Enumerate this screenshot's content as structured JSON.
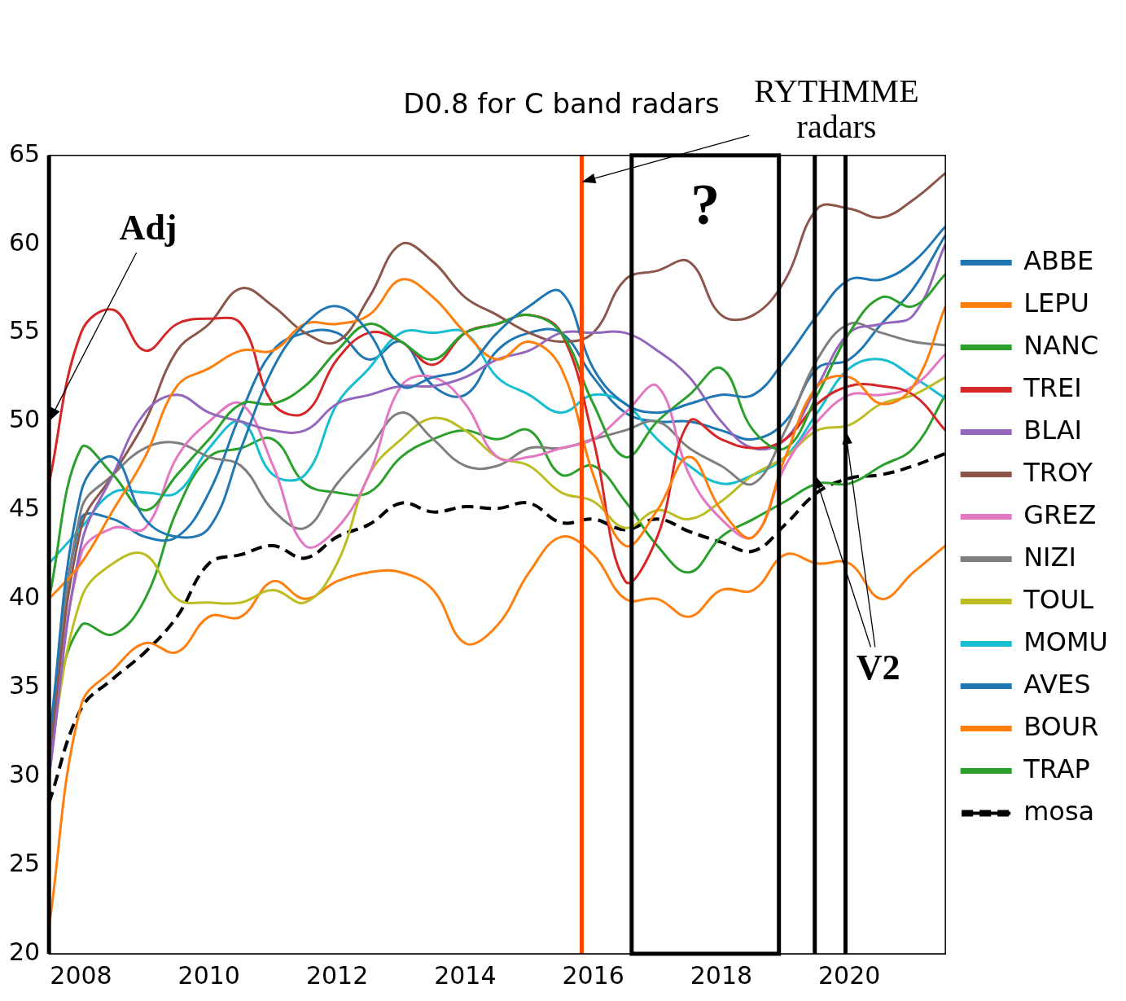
{
  "chart_data": {
    "type": "line",
    "title": "D0.8 for C band radars",
    "x": [
      2007.5,
      2008,
      2008.5,
      2009,
      2009.5,
      2010,
      2010.5,
      2011,
      2011.5,
      2012,
      2012.5,
      2013,
      2013.5,
      2014,
      2014.5,
      2015,
      2015.5,
      2016,
      2016.5,
      2017,
      2017.5,
      2018,
      2018.5,
      2019,
      2019.5,
      2020,
      2020.5,
      2021,
      2021.5
    ],
    "series": [
      {
        "name": "ABBE",
        "color": "#1f77b4",
        "line_style": "solid",
        "values": [
          32,
          46,
          48,
          44.5,
          43.5,
          44,
          48.5,
          53,
          55.5,
          56.5,
          55,
          52,
          52.5,
          53,
          55,
          56.5,
          57.3,
          53,
          51,
          50.5,
          51,
          51.5,
          51.5,
          53.5,
          56,
          58,
          58,
          59,
          61
        ]
      },
      {
        "name": "LEPU",
        "color": "#ff7f0e",
        "line_style": "solid",
        "values": [
          40,
          42,
          45,
          48,
          52,
          53,
          54,
          54,
          55.5,
          55.5,
          56,
          58,
          57,
          55,
          53.5,
          54.5,
          53,
          47,
          43,
          45,
          48,
          45,
          43.5,
          48,
          52,
          52.5,
          51,
          52,
          56.5
        ]
      },
      {
        "name": "NANC",
        "color": "#2ca02c",
        "line_style": "solid",
        "values": [
          40,
          48.5,
          47,
          45,
          47,
          49,
          51,
          51,
          52,
          54,
          55.5,
          54.5,
          53.5,
          55,
          55.5,
          56,
          55,
          51,
          48,
          50,
          51.5,
          53,
          49.5,
          48.5,
          51.5,
          55,
          57,
          56.5,
          58.3
        ]
      },
      {
        "name": "TREI",
        "color": "#d62728",
        "line_style": "solid",
        "values": [
          46.5,
          55,
          56.3,
          54,
          55.5,
          55.8,
          55.5,
          51,
          50.5,
          53.5,
          55,
          54.5,
          53.2,
          55,
          55.5,
          56,
          55,
          49,
          41,
          43.5,
          50,
          49,
          48.5,
          49,
          51,
          52,
          52,
          51.5,
          49.5
        ]
      },
      {
        "name": "BLAI",
        "color": "#9467bd",
        "line_style": "solid",
        "values": [
          30,
          43,
          47,
          50.5,
          51.5,
          50.5,
          50,
          49.5,
          49.5,
          51,
          51.5,
          52,
          52,
          52.5,
          53.5,
          54,
          55,
          55,
          55,
          54,
          52.5,
          50,
          48.5,
          49,
          52,
          55,
          55.5,
          56,
          60
        ]
      },
      {
        "name": "TROY",
        "color": "#8c564b",
        "line_style": "solid",
        "values": [
          31,
          44,
          47,
          50,
          54,
          55.5,
          57.5,
          56.5,
          55,
          54.5,
          57,
          60,
          59,
          57,
          56,
          55,
          54.5,
          55,
          58,
          58.5,
          59,
          56,
          56,
          58,
          62,
          62,
          61.5,
          62.5,
          64
        ]
      },
      {
        "name": "GREZ",
        "color": "#e377c2",
        "line_style": "solid",
        "values": [
          30,
          42.5,
          44,
          44,
          48,
          50,
          51,
          47.5,
          43,
          44,
          47,
          52,
          52.5,
          51,
          48,
          48,
          48.5,
          49,
          50.5,
          52,
          47,
          44.5,
          43.5,
          47.5,
          50,
          51.5,
          51.5,
          52,
          53.8
        ]
      },
      {
        "name": "NIZI",
        "color": "#7f7f7f",
        "line_style": "solid",
        "values": [
          31,
          45,
          47,
          48.5,
          48.8,
          48,
          47.5,
          45,
          44,
          46.5,
          48.5,
          50.5,
          49,
          47.5,
          47.5,
          48.5,
          48.5,
          49,
          49.5,
          50,
          48.5,
          47.5,
          46.5,
          49.5,
          53.5,
          55.5,
          55,
          54.5,
          54.3
        ]
      },
      {
        "name": "TOUL",
        "color": "#bcbd22",
        "line_style": "solid",
        "values": [
          31,
          40,
          42,
          42.5,
          40,
          39.8,
          39.8,
          40.5,
          39.8,
          42,
          47,
          49,
          50.2,
          49.5,
          48,
          47.5,
          46,
          45.5,
          44,
          45,
          44.5,
          45.5,
          47,
          48,
          49.5,
          49.8,
          51,
          51.5,
          52.5
        ]
      },
      {
        "name": "MOMU",
        "color": "#17becf",
        "line_style": "solid",
        "values": [
          42,
          44,
          46,
          46,
          46,
          48.5,
          50,
          47,
          47,
          51,
          53,
          55,
          55,
          55,
          52.5,
          51.5,
          50.5,
          51.5,
          51,
          49,
          47.5,
          46.5,
          47,
          48,
          50.5,
          53,
          53.5,
          52.5,
          51.3
        ]
      },
      {
        "name": "AVES",
        "color": "#1f77b4",
        "line_style": "solid",
        "values": [
          31,
          44.5,
          44.5,
          43.5,
          43.5,
          46,
          50.5,
          54,
          55,
          55,
          53.5,
          54.5,
          52,
          51.5,
          54,
          55,
          55,
          52.5,
          50.5,
          50,
          50,
          49.5,
          49,
          50,
          53,
          53.5,
          55.5,
          57.5,
          60.5
        ]
      },
      {
        "name": "BOUR",
        "color": "#ff7f0e",
        "line_style": "solid",
        "values": [
          21.5,
          34,
          36,
          37.5,
          37,
          39,
          39,
          41,
          40,
          41,
          41.5,
          41.5,
          40.5,
          37.5,
          38.5,
          41.5,
          43.5,
          42.5,
          40,
          40,
          39,
          40.5,
          40.5,
          42.5,
          42,
          42,
          40,
          41.5,
          43
        ]
      },
      {
        "name": "TRAP",
        "color": "#2ca02c",
        "line_style": "solid",
        "values": [
          33,
          38.5,
          38,
          40,
          45,
          48,
          48.5,
          49,
          46.5,
          46,
          46,
          48,
          49,
          49.5,
          49,
          49.5,
          47,
          47.5,
          45.5,
          43,
          41.5,
          43.5,
          44.5,
          45.5,
          46.5,
          46.5,
          47.5,
          48.5,
          51.5
        ]
      },
      {
        "name": "mosa",
        "color": "#000000",
        "line_style": "dashed",
        "values": [
          28.5,
          33.8,
          35.5,
          37,
          39,
          42,
          42.5,
          43,
          42.3,
          43.5,
          44.2,
          45.4,
          44.9,
          45.2,
          45.1,
          45.4,
          44.3,
          44.5,
          43.9,
          44.5,
          43.8,
          43.2,
          42.7,
          44.2,
          46,
          46.8,
          47,
          47.5,
          48.2
        ]
      }
    ],
    "xlim": [
      2007.5,
      2021.5
    ],
    "xticks": [
      2008,
      2010,
      2012,
      2014,
      2016,
      2018,
      2020
    ],
    "ylim": [
      20,
      65
    ],
    "yticks": [
      20,
      25,
      30,
      35,
      40,
      45,
      50,
      55,
      60,
      65
    ],
    "grid": false,
    "legend": "right",
    "annotations": [
      {
        "type": "vline",
        "x": 2007.5,
        "color": "#000000"
      },
      {
        "type": "vline",
        "x": 2015.82,
        "color": "#ff4500"
      },
      {
        "type": "box",
        "xlim": [
          2016.6,
          2018.9
        ],
        "color": "#000000"
      },
      {
        "type": "vline",
        "x": 2019.46,
        "color": "#000000"
      },
      {
        "type": "vline",
        "x": 2019.94,
        "color": "#000000"
      },
      {
        "type": "text",
        "text": "Adj",
        "x": 2009.05,
        "y": 60.8,
        "targets": [
          [
            2007.5,
            50
          ]
        ]
      },
      {
        "type": "text",
        "text": "RYTHMME radars",
        "x": 2019.8,
        "y": 67.5,
        "targets": [
          [
            2015.82,
            63.5
          ]
        ]
      },
      {
        "type": "text",
        "text": "?",
        "x": 2017.75,
        "y": 62
      },
      {
        "type": "text",
        "text": "V2",
        "x": 2020.45,
        "y": 36,
        "targets": [
          [
            2019.46,
            47
          ],
          [
            2019.94,
            49.5
          ]
        ]
      }
    ]
  }
}
